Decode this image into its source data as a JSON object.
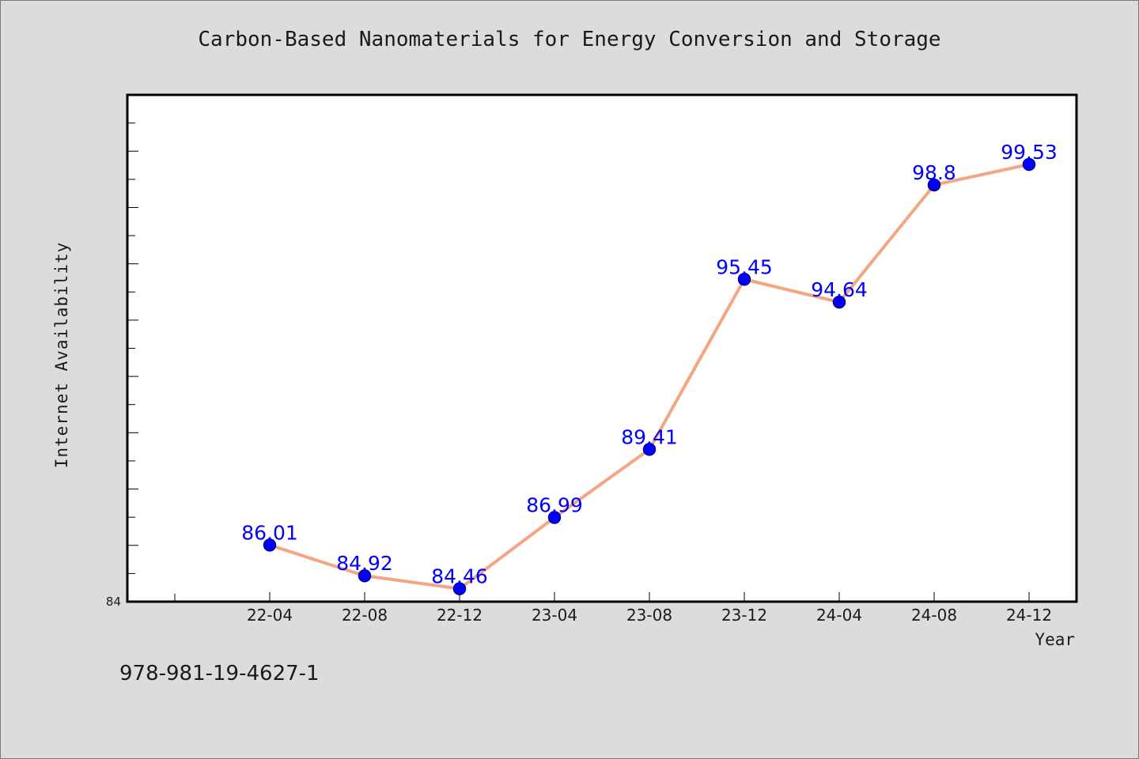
{
  "chart_data": {
    "type": "line",
    "title": "Carbon-Based Nanomaterials for Energy Conversion and Storage",
    "xlabel": "Year",
    "ylabel": "Internet Availability",
    "categories": [
      "22-04",
      "22-08",
      "22-12",
      "23-04",
      "23-08",
      "23-12",
      "24-04",
      "24-08",
      "24-12"
    ],
    "values": [
      86.01,
      84.92,
      84.46,
      86.99,
      89.41,
      95.45,
      94.64,
      98.8,
      99.53
    ],
    "data_labels": [
      "86.01",
      "84.92",
      "84.46",
      "86.99",
      "89.41",
      "95.45",
      "94.64",
      "98.8",
      "99.53"
    ],
    "ylim": [
      84,
      102
    ],
    "y_tick_labels": [
      "84"
    ],
    "grid": false,
    "legend": "none",
    "colors": {
      "line": "#f4a582",
      "marker": "#0000ff",
      "data_label": "#0000ff",
      "plot_background": "#ffffff",
      "page_background": "#dcdcdc"
    }
  },
  "footer": {
    "isbn": "978-981-19-4627-1"
  }
}
